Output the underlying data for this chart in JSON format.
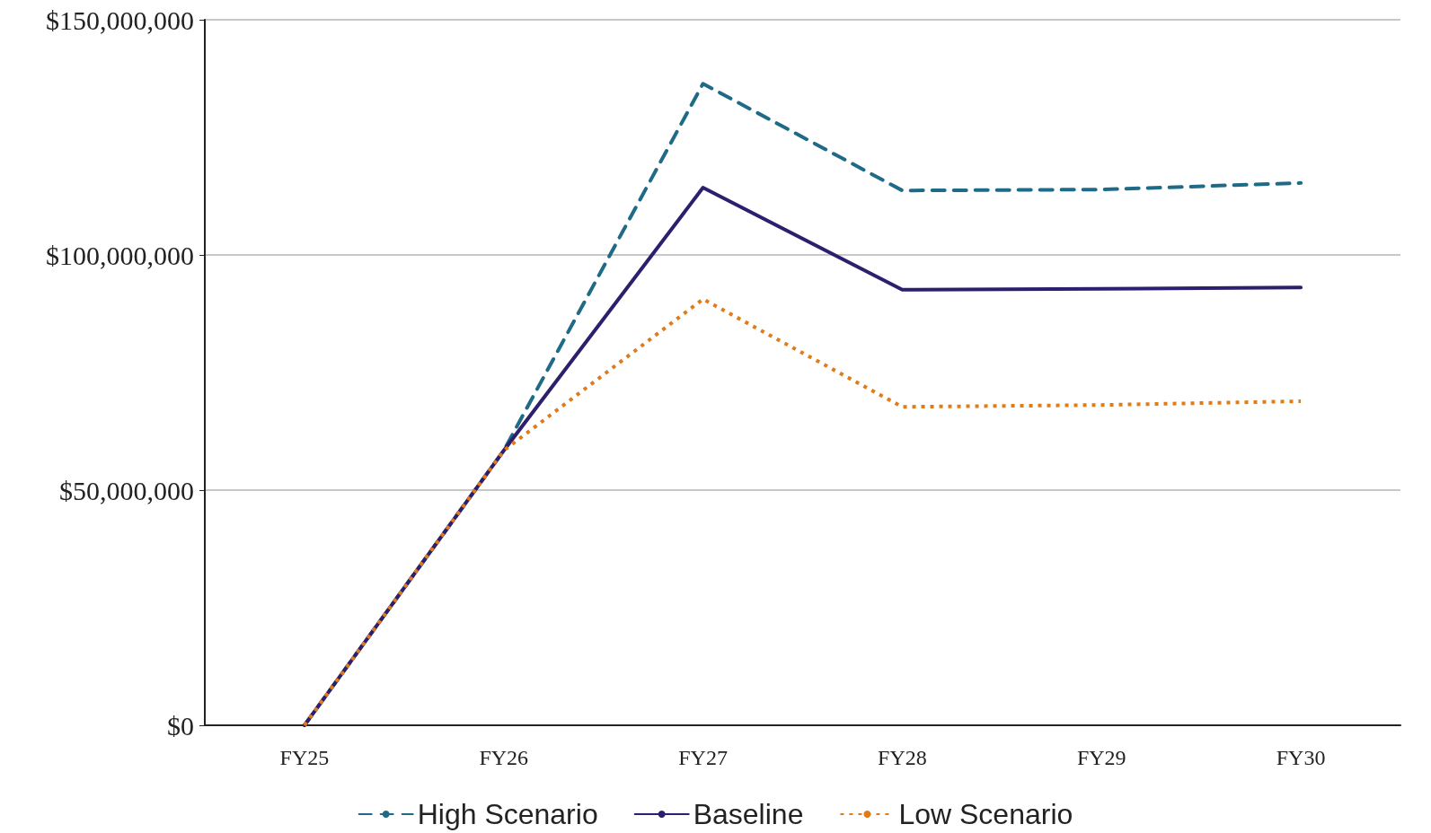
{
  "chart_data": {
    "type": "line",
    "categories": [
      "FY25",
      "FY26",
      "FY27",
      "FY28",
      "FY29",
      "FY30"
    ],
    "series": [
      {
        "name": "High Scenario",
        "color": "#1f6b87",
        "line_style": "dashed",
        "values": [
          0,
          58400000,
          136400000,
          113700000,
          113900000,
          115300000
        ]
      },
      {
        "name": "Baseline",
        "color": "#2e1f6e",
        "line_style": "solid",
        "values": [
          0,
          58400000,
          114300000,
          92600000,
          92800000,
          93100000
        ]
      },
      {
        "name": "Low Scenario",
        "color": "#e07b1a",
        "line_style": "dotted",
        "values": [
          0,
          58400000,
          90600000,
          67700000,
          68100000,
          68900000
        ]
      }
    ],
    "ylim": [
      0,
      150000000
    ],
    "yticks": [
      {
        "value": 0,
        "label": "$0"
      },
      {
        "value": 50000000,
        "label": "$50,000,000"
      },
      {
        "value": 100000000,
        "label": "$100,000,000"
      },
      {
        "value": 150000000,
        "label": "$150,000,000"
      }
    ],
    "grid": "y",
    "legend": "bottom",
    "marker": "none"
  }
}
